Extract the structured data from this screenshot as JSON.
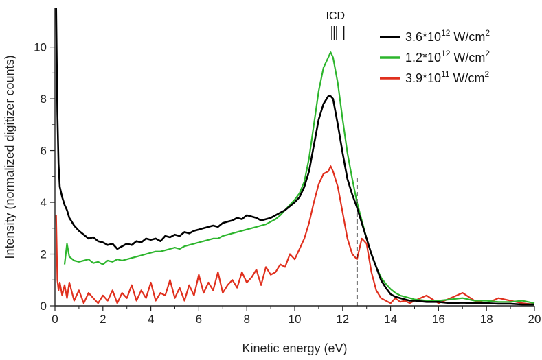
{
  "chart_data": {
    "type": "line",
    "title": "",
    "xlabel": "Kinetic energy (eV)",
    "ylabel": "Intensity (normalized digitizer counts)",
    "xlim": [
      0,
      20
    ],
    "ylim": [
      0,
      11.5
    ],
    "xticks": [
      0,
      2,
      4,
      6,
      8,
      10,
      12,
      14,
      16,
      18,
      20
    ],
    "yticks": [
      0,
      2,
      4,
      6,
      8,
      10
    ],
    "grid": false,
    "legend_position": "top-right",
    "annotations": [
      {
        "text": "ICD",
        "x": 11.7,
        "markers": [
          11.55,
          11.65,
          11.75,
          12.05
        ]
      },
      {
        "type": "dashed-vertical-line",
        "x": 12.6,
        "y_range": [
          0,
          5.0
        ]
      }
    ],
    "series": [
      {
        "name": "3.6*10^12 W/cm^2",
        "legend": {
          "base": "3.6*10",
          "exp": "12",
          "unit": " W/cm",
          "unit_exp": "2"
        },
        "color": "#000000",
        "x": [
          0.05,
          0.1,
          0.15,
          0.2,
          0.3,
          0.4,
          0.5,
          0.6,
          0.8,
          1.0,
          1.2,
          1.4,
          1.6,
          1.8,
          2.0,
          2.2,
          2.4,
          2.6,
          2.8,
          3.0,
          3.2,
          3.4,
          3.6,
          3.8,
          4.0,
          4.2,
          4.4,
          4.6,
          4.8,
          5.0,
          5.2,
          5.4,
          5.6,
          5.8,
          6.0,
          6.2,
          6.4,
          6.6,
          6.8,
          7.0,
          7.2,
          7.4,
          7.6,
          7.8,
          8.0,
          8.2,
          8.4,
          8.6,
          8.8,
          9.0,
          9.2,
          9.4,
          9.6,
          9.8,
          10.0,
          10.2,
          10.4,
          10.6,
          10.8,
          11.0,
          11.2,
          11.4,
          11.5,
          11.6,
          11.8,
          12.0,
          12.2,
          12.4,
          12.6,
          12.8,
          13.0,
          13.2,
          13.4,
          13.6,
          13.8,
          14.0,
          14.2,
          14.4,
          14.6,
          14.8,
          15.0,
          15.5,
          16.0,
          16.5,
          17.0,
          17.5,
          18.0,
          18.5,
          19.0,
          19.5,
          20.0
        ],
        "y": [
          11.5,
          7.5,
          5.5,
          4.6,
          4.2,
          3.9,
          3.7,
          3.4,
          3.1,
          2.9,
          2.75,
          2.6,
          2.65,
          2.5,
          2.45,
          2.35,
          2.4,
          2.2,
          2.3,
          2.4,
          2.35,
          2.5,
          2.45,
          2.6,
          2.55,
          2.6,
          2.5,
          2.7,
          2.65,
          2.75,
          2.7,
          2.85,
          2.8,
          2.9,
          2.95,
          3.0,
          3.05,
          3.1,
          3.05,
          3.2,
          3.25,
          3.3,
          3.4,
          3.35,
          3.5,
          3.45,
          3.4,
          3.3,
          3.35,
          3.4,
          3.5,
          3.6,
          3.7,
          3.85,
          4.0,
          4.2,
          4.6,
          5.2,
          6.2,
          7.2,
          7.8,
          8.1,
          8.1,
          8.0,
          7.0,
          5.9,
          4.9,
          4.3,
          3.8,
          3.2,
          2.6,
          2.0,
          1.5,
          1.0,
          0.7,
          0.45,
          0.35,
          0.3,
          0.25,
          0.2,
          0.2,
          0.15,
          0.15,
          0.1,
          0.12,
          0.1,
          0.1,
          0.08,
          0.08,
          0.05,
          0.05
        ]
      },
      {
        "name": "1.2*10^12 W/cm^2",
        "legend": {
          "base": "1.2*10",
          "exp": "12",
          "unit": " W/cm",
          "unit_exp": "2"
        },
        "color": "#2db52d",
        "x": [
          0.4,
          0.5,
          0.6,
          0.8,
          1.0,
          1.2,
          1.4,
          1.6,
          1.8,
          2.0,
          2.2,
          2.4,
          2.6,
          2.8,
          3.0,
          3.2,
          3.4,
          3.6,
          3.8,
          4.0,
          4.2,
          4.4,
          4.6,
          4.8,
          5.0,
          5.2,
          5.4,
          5.6,
          5.8,
          6.0,
          6.2,
          6.4,
          6.6,
          6.8,
          7.0,
          7.2,
          7.4,
          7.6,
          7.8,
          8.0,
          8.2,
          8.4,
          8.6,
          8.8,
          9.0,
          9.2,
          9.4,
          9.6,
          9.8,
          10.0,
          10.2,
          10.4,
          10.6,
          10.8,
          11.0,
          11.2,
          11.4,
          11.5,
          11.6,
          11.8,
          12.0,
          12.2,
          12.4,
          12.6,
          12.8,
          13.0,
          13.2,
          13.4,
          13.6,
          13.8,
          14.0,
          14.2,
          14.4,
          14.6,
          14.8,
          15.0,
          15.5,
          16.0,
          16.5,
          17.0,
          17.5,
          18.0,
          18.5,
          19.0,
          19.5,
          20.0
        ],
        "y": [
          1.6,
          2.4,
          1.9,
          1.75,
          1.7,
          1.75,
          1.8,
          1.65,
          1.7,
          1.6,
          1.75,
          1.7,
          1.8,
          1.75,
          1.8,
          1.85,
          1.9,
          1.95,
          2.0,
          2.05,
          2.1,
          2.1,
          2.15,
          2.2,
          2.25,
          2.2,
          2.3,
          2.35,
          2.4,
          2.45,
          2.5,
          2.55,
          2.6,
          2.6,
          2.7,
          2.75,
          2.8,
          2.85,
          2.9,
          2.95,
          3.0,
          3.05,
          3.1,
          3.15,
          3.25,
          3.35,
          3.5,
          3.7,
          3.9,
          4.1,
          4.35,
          4.8,
          5.7,
          7.0,
          8.3,
          9.2,
          9.6,
          9.8,
          9.6,
          8.6,
          7.2,
          5.9,
          4.9,
          4.0,
          3.3,
          2.6,
          2.0,
          1.5,
          1.1,
          0.85,
          0.65,
          0.5,
          0.4,
          0.35,
          0.3,
          0.25,
          0.2,
          0.2,
          0.25,
          0.3,
          0.2,
          0.2,
          0.15,
          0.15,
          0.2,
          0.1
        ]
      },
      {
        "name": "3.9*10^11 W/cm^2",
        "legend": {
          "base": "3.9*10",
          "exp": "11",
          "unit": " W/cm",
          "unit_exp": "2"
        },
        "color": "#e0301e",
        "x": [
          0.05,
          0.1,
          0.15,
          0.2,
          0.3,
          0.4,
          0.5,
          0.6,
          0.8,
          1.0,
          1.2,
          1.4,
          1.6,
          1.8,
          2.0,
          2.2,
          2.4,
          2.6,
          2.8,
          3.0,
          3.2,
          3.4,
          3.6,
          3.8,
          4.0,
          4.2,
          4.4,
          4.6,
          4.8,
          5.0,
          5.2,
          5.4,
          5.6,
          5.8,
          6.0,
          6.2,
          6.4,
          6.6,
          6.8,
          7.0,
          7.2,
          7.4,
          7.6,
          7.8,
          8.0,
          8.2,
          8.4,
          8.6,
          8.8,
          9.0,
          9.2,
          9.4,
          9.6,
          9.8,
          10.0,
          10.2,
          10.4,
          10.6,
          10.8,
          11.0,
          11.2,
          11.4,
          11.5,
          11.6,
          11.8,
          12.0,
          12.2,
          12.4,
          12.6,
          12.8,
          13.0,
          13.2,
          13.4,
          13.6,
          13.8,
          14.0,
          14.2,
          14.4,
          14.6,
          14.8,
          15.0,
          15.5,
          16.0,
          16.5,
          17.0,
          17.5,
          18.0,
          18.5,
          19.0,
          19.5,
          20.0
        ],
        "y": [
          3.5,
          1.0,
          0.6,
          0.9,
          0.4,
          0.8,
          0.3,
          0.9,
          0.2,
          0.6,
          0.1,
          0.5,
          0.3,
          0.1,
          0.4,
          0.2,
          0.6,
          0.1,
          0.5,
          0.3,
          0.8,
          0.2,
          0.6,
          0.3,
          0.9,
          0.2,
          0.5,
          0.4,
          1.0,
          0.3,
          0.7,
          0.2,
          0.8,
          0.4,
          1.2,
          0.5,
          0.9,
          0.6,
          1.3,
          0.5,
          0.8,
          1.0,
          0.7,
          1.3,
          0.9,
          1.1,
          1.4,
          0.8,
          1.5,
          1.2,
          1.3,
          1.6,
          1.5,
          2.0,
          1.8,
          2.2,
          2.6,
          3.2,
          4.0,
          4.7,
          5.1,
          5.2,
          5.4,
          5.2,
          4.6,
          3.6,
          2.6,
          2.0,
          1.8,
          2.6,
          2.4,
          1.3,
          0.6,
          0.3,
          0.2,
          0.1,
          0.3,
          0.15,
          0.2,
          0.1,
          0.2,
          0.4,
          0.1,
          0.3,
          0.5,
          0.2,
          0.1,
          0.3,
          0.2,
          0.1,
          0.05
        ]
      }
    ]
  }
}
